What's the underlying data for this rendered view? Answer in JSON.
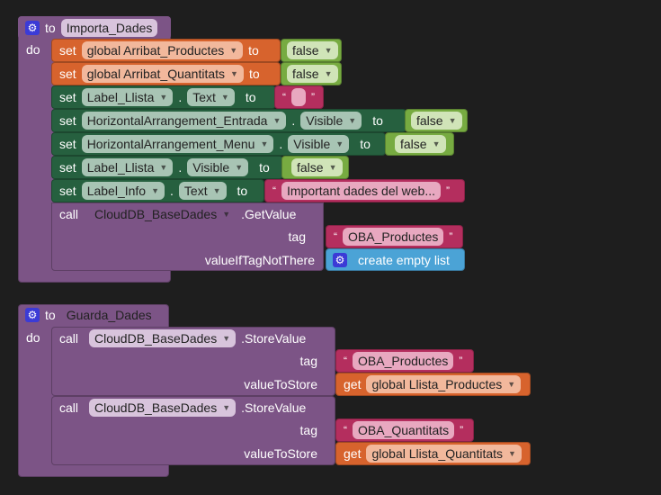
{
  "proc1": {
    "to": "to",
    "name": "Importa_Dades",
    "do": "do",
    "rows": [
      {
        "kw": "set",
        "target": "global Arribat_Productes",
        "to": "to",
        "value": "false"
      },
      {
        "kw": "set",
        "target": "global Arribat_Quantitats",
        "to": "to",
        "value": "false"
      },
      {
        "kw": "set",
        "component": "Label_Llista",
        "prop": "Text",
        "to": "to",
        "value": ""
      },
      {
        "kw": "set",
        "component": "HorizontalArrangement_Entrada",
        "prop": "Visible",
        "to": "to",
        "value": "false"
      },
      {
        "kw": "set",
        "component": "HorizontalArrangement_Menu",
        "prop": "Visible",
        "to": "to",
        "value": "false"
      },
      {
        "kw": "set",
        "component": "Label_Llista",
        "prop": "Visible",
        "to": "to",
        "value": "false"
      },
      {
        "kw": "set",
        "component": "Label_Info",
        "prop": "Text",
        "to": "to",
        "value": "Important dades del web..."
      }
    ],
    "call": {
      "kw": "call",
      "component": "CloudDB_BaseDades",
      "method": ".GetValue",
      "tag_label": "tag",
      "tag": "OBA_Productes",
      "vtnt_label": "valueIfTagNotThere",
      "vtnt": "create empty list"
    }
  },
  "proc2": {
    "to": "to",
    "name": "Guarda_Dades",
    "do": "do",
    "calls": [
      {
        "kw": "call",
        "component": "CloudDB_BaseDades",
        "method": ".StoreValue",
        "tag_label": "tag",
        "tag": "OBA_Productes",
        "vts_label": "valueToStore",
        "get": "get",
        "var": "global Llista_Productes"
      },
      {
        "kw": "call",
        "component": "CloudDB_BaseDades",
        "method": ".StoreValue",
        "tag_label": "tag",
        "tag": "OBA_Quantitats",
        "vts_label": "valueToStore",
        "get": "get",
        "var": "global Llista_Quantitats"
      }
    ]
  },
  "quote_open": "“",
  "quote_close": "”",
  "dot": ".",
  "dropdown": "▼"
}
